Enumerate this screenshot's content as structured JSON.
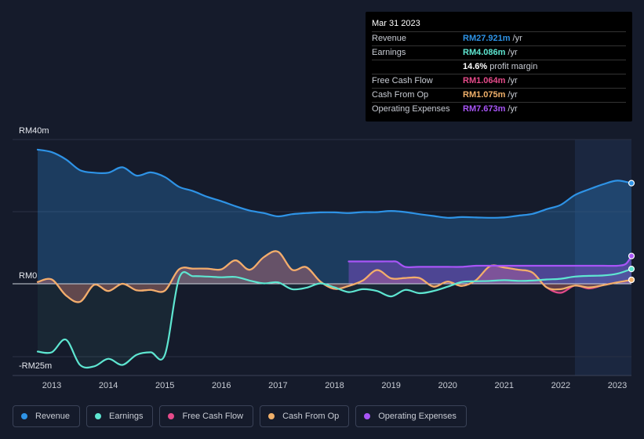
{
  "tooltip": {
    "date": "Mar 31 2023",
    "rows": [
      {
        "label": "Revenue",
        "value": "RM27.921m",
        "unit": "/yr",
        "color": "#2e93e6"
      },
      {
        "label": "Earnings",
        "value": "RM4.086m",
        "unit": "/yr",
        "color": "#5ee6d1"
      },
      {
        "label": "",
        "value": "14.6%",
        "unit": "profit margin",
        "color": "#ffffff"
      },
      {
        "label": "Free Cash Flow",
        "value": "RM1.064m",
        "unit": "/yr",
        "color": "#e64b8a"
      },
      {
        "label": "Cash From Op",
        "value": "RM1.075m",
        "unit": "/yr",
        "color": "#f0b06a"
      },
      {
        "label": "Operating Expenses",
        "value": "RM7.673m",
        "unit": "/yr",
        "color": "#a855f7"
      }
    ]
  },
  "legend": [
    {
      "label": "Revenue",
      "color": "#2e93e6"
    },
    {
      "label": "Earnings",
      "color": "#5ee6d1"
    },
    {
      "label": "Free Cash Flow",
      "color": "#e64b8a"
    },
    {
      "label": "Cash From Op",
      "color": "#f0b06a"
    },
    {
      "label": "Operating Expenses",
      "color": "#a855f7"
    }
  ],
  "chart_data": {
    "type": "area",
    "title": "",
    "xlabel": "",
    "ylabel": "",
    "xlim": [
      2012.75,
      2023.25
    ],
    "ylim": [
      -25,
      40
    ],
    "y_tick_labels": [
      {
        "value": 40,
        "label": "RM40m"
      },
      {
        "value": 0,
        "label": "RM0"
      },
      {
        "value": -25,
        "label": "-RM25m"
      }
    ],
    "x_ticks": [
      {
        "value": 2013,
        "label": "2013"
      },
      {
        "value": 2014,
        "label": "2014"
      },
      {
        "value": 2015,
        "label": "2015"
      },
      {
        "value": 2016,
        "label": "2016"
      },
      {
        "value": 2017,
        "label": "2017"
      },
      {
        "value": 2018,
        "label": "2018"
      },
      {
        "value": 2019,
        "label": "2019"
      },
      {
        "value": 2020,
        "label": "2020"
      },
      {
        "value": 2021,
        "label": "2021"
      },
      {
        "value": 2022,
        "label": "2022"
      },
      {
        "value": 2023,
        "label": "2023"
      }
    ],
    "highlight_start": 2022.25,
    "series": [
      {
        "name": "Revenue",
        "color": "#2e93e6",
        "x": [
          2012.75,
          2013.0,
          2013.25,
          2013.5,
          2013.75,
          2014.0,
          2014.25,
          2014.5,
          2014.75,
          2015.0,
          2015.25,
          2015.5,
          2015.75,
          2016.0,
          2016.25,
          2016.5,
          2016.75,
          2017.0,
          2017.25,
          2017.5,
          2017.75,
          2018.0,
          2018.25,
          2018.5,
          2018.75,
          2019.0,
          2019.25,
          2019.5,
          2019.75,
          2020.0,
          2020.25,
          2020.5,
          2020.75,
          2021.0,
          2021.25,
          2021.5,
          2021.75,
          2022.0,
          2022.25,
          2022.5,
          2022.75,
          2023.0,
          2023.25
        ],
        "values": [
          37.2,
          36.5,
          34.5,
          31.5,
          30.8,
          30.8,
          32.3,
          30.0,
          30.9,
          29.6,
          26.9,
          25.7,
          24.1,
          22.9,
          21.5,
          20.3,
          19.6,
          18.7,
          19.3,
          19.6,
          19.8,
          19.8,
          19.6,
          19.9,
          19.9,
          20.2,
          19.9,
          19.3,
          18.8,
          18.3,
          18.5,
          18.4,
          18.3,
          18.4,
          18.9,
          19.4,
          20.7,
          21.9,
          24.6,
          26.2,
          27.6,
          28.6,
          27.9
        ]
      },
      {
        "name": "Earnings",
        "color": "#5ee6d1",
        "x": [
          2012.75,
          2013.0,
          2013.25,
          2013.5,
          2013.75,
          2014.0,
          2014.25,
          2014.5,
          2014.75,
          2015.0,
          2015.25,
          2015.5,
          2015.75,
          2016.0,
          2016.25,
          2016.5,
          2016.75,
          2017.0,
          2017.25,
          2017.5,
          2017.75,
          2018.0,
          2018.25,
          2018.5,
          2018.75,
          2019.0,
          2019.25,
          2019.5,
          2019.75,
          2020.0,
          2020.25,
          2020.5,
          2020.75,
          2021.0,
          2021.25,
          2021.5,
          2021.75,
          2022.0,
          2022.25,
          2022.5,
          2022.75,
          2023.0,
          2023.25
        ],
        "values": [
          -18.8,
          -19.0,
          -15.5,
          -22.5,
          -22.9,
          -20.8,
          -22.5,
          -19.7,
          -19.0,
          -19.7,
          1.5,
          2.1,
          2.0,
          1.8,
          1.9,
          0.9,
          0.1,
          0.4,
          -1.5,
          -1.1,
          0.1,
          -1.0,
          -2.3,
          -1.5,
          -2.0,
          -3.5,
          -1.7,
          -2.6,
          -2.0,
          -0.8,
          0.5,
          0.7,
          0.8,
          1.0,
          0.8,
          0.9,
          1.2,
          1.4,
          2.0,
          2.2,
          2.3,
          2.8,
          4.1
        ]
      },
      {
        "name": "Free Cash Flow",
        "color": "#e64b8a",
        "x": [
          2012.75,
          2013.0,
          2013.25,
          2013.5,
          2013.75,
          2014.0,
          2014.25,
          2014.5,
          2014.75,
          2015.0,
          2015.25,
          2015.5,
          2015.75,
          2016.0,
          2016.25,
          2016.5,
          2016.75,
          2017.0,
          2017.25,
          2017.5,
          2017.75,
          2018.0,
          2018.25,
          2018.5,
          2018.75,
          2019.0,
          2019.25,
          2019.5,
          2019.75,
          2020.0,
          2020.25,
          2020.5,
          2020.75,
          2021.0,
          2021.25,
          2021.5,
          2021.75,
          2022.0,
          2022.25,
          2022.5,
          2022.75,
          2023.0,
          2023.25
        ],
        "values": [
          0.5,
          1.2,
          -3.2,
          -5.0,
          -0.3,
          -2.0,
          0.0,
          -1.8,
          -1.7,
          -1.9,
          4.0,
          4.2,
          4.2,
          4.0,
          6.5,
          3.9,
          7.4,
          8.9,
          3.9,
          4.6,
          0.6,
          -1.4,
          -0.6,
          0.9,
          3.8,
          1.5,
          1.6,
          1.6,
          -0.8,
          0.6,
          -0.6,
          1.0,
          4.9,
          4.5,
          3.9,
          3.1,
          -1.0,
          -2.5,
          -0.5,
          -1.3,
          -0.4,
          0.4,
          1.1
        ]
      },
      {
        "name": "Cash From Op",
        "color": "#f0b06a",
        "x": [
          2012.75,
          2013.0,
          2013.25,
          2013.5,
          2013.75,
          2014.0,
          2014.25,
          2014.5,
          2014.75,
          2015.0,
          2015.25,
          2015.5,
          2015.75,
          2016.0,
          2016.25,
          2016.5,
          2016.75,
          2017.0,
          2017.25,
          2017.5,
          2017.75,
          2018.0,
          2018.25,
          2018.5,
          2018.75,
          2019.0,
          2019.25,
          2019.5,
          2019.75,
          2020.0,
          2020.25,
          2020.5,
          2020.75,
          2021.0,
          2021.25,
          2021.5,
          2021.75,
          2022.0,
          2022.25,
          2022.5,
          2022.75,
          2023.0,
          2023.25
        ],
        "values": [
          0.5,
          1.2,
          -3.2,
          -5.0,
          -0.3,
          -2.0,
          0.0,
          -1.8,
          -1.7,
          -1.9,
          4.0,
          4.2,
          4.2,
          4.0,
          6.5,
          3.9,
          7.4,
          8.9,
          3.9,
          4.6,
          0.6,
          -1.4,
          -0.6,
          0.9,
          3.8,
          1.5,
          1.6,
          1.6,
          -0.8,
          0.6,
          -0.6,
          1.0,
          4.9,
          4.5,
          3.9,
          3.1,
          -1.0,
          -1.5,
          -0.5,
          -1.0,
          -0.4,
          0.4,
          1.1
        ]
      },
      {
        "name": "Operating Expenses",
        "color": "#a855f7",
        "x": [
          2018.25,
          2018.5,
          2018.75,
          2019.0,
          2019.1,
          2019.25,
          2019.5,
          2019.75,
          2020.0,
          2020.25,
          2020.5,
          2020.75,
          2021.0,
          2021.25,
          2021.5,
          2021.75,
          2022.0,
          2022.25,
          2022.5,
          2022.75,
          2023.0,
          2023.15,
          2023.25
        ],
        "values": [
          6.2,
          6.2,
          6.2,
          6.2,
          6.1,
          4.7,
          4.7,
          4.7,
          4.7,
          4.7,
          5.0,
          5.0,
          5.0,
          5.0,
          5.0,
          5.0,
          5.0,
          5.0,
          5.0,
          5.0,
          5.0,
          5.5,
          7.7
        ]
      }
    ]
  }
}
